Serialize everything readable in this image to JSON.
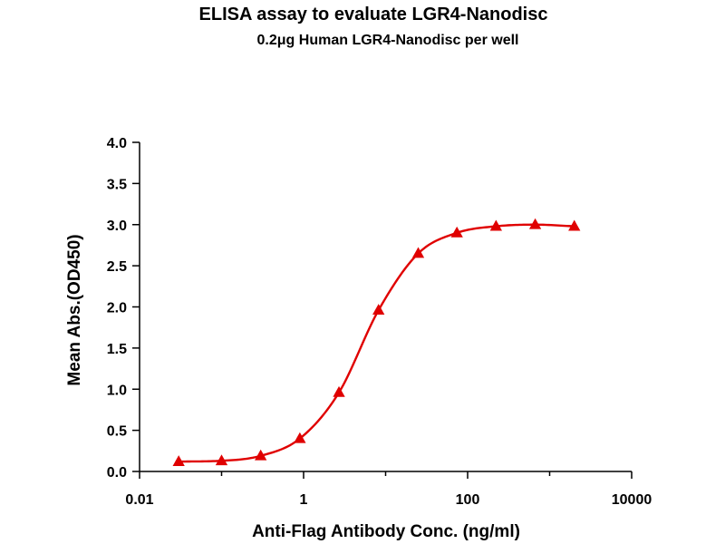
{
  "chart_data": {
    "type": "scatter",
    "title": "ELISA assay to evaluate LGR4-Nanodisc",
    "subtitle": "0.2μg Human LGR4-Nanodisc per well",
    "xlabel": "Anti-Flag Antibody Conc. (ng/ml)",
    "ylabel": "Mean Abs.(OD450)",
    "x_scale": "log",
    "xlim": [
      0.01,
      10000
    ],
    "ylim": [
      0,
      4.0
    ],
    "x_ticks": [
      "0.01",
      "1",
      "100",
      "10000"
    ],
    "y_ticks": [
      "0.0",
      "0.5",
      "1.0",
      "1.5",
      "2.0",
      "2.5",
      "3.0",
      "3.5",
      "4.0"
    ],
    "grid": false,
    "legend": "none",
    "marker": "triangle",
    "fit_curve": "sigmoidal",
    "series": [
      {
        "color": "#e00000",
        "x": [
          0.03,
          0.1,
          0.3,
          0.9,
          2.7,
          8.2,
          25,
          74,
          222,
          667,
          2000
        ],
        "y": [
          0.12,
          0.13,
          0.19,
          0.4,
          0.96,
          1.96,
          2.65,
          2.9,
          2.98,
          3.0,
          2.98
        ]
      }
    ]
  }
}
